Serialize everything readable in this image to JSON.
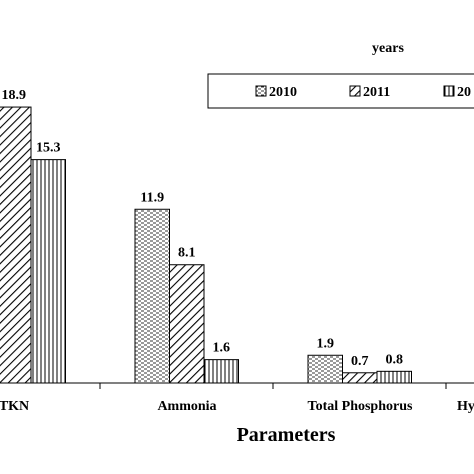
{
  "chart_data": {
    "type": "bar",
    "x_label": "Parameters",
    "legend_title": "years",
    "categories": [
      "TKN",
      "Ammonia",
      "Total Phosphorus",
      "Hy"
    ],
    "series": [
      {
        "name": "2010",
        "values": [
          null,
          11.9,
          1.9,
          null
        ]
      },
      {
        "name": "2011",
        "values": [
          18.9,
          8.1,
          0.7,
          null
        ]
      },
      {
        "name": "20",
        "values": [
          15.3,
          1.6,
          0.8,
          null
        ]
      }
    ]
  }
}
